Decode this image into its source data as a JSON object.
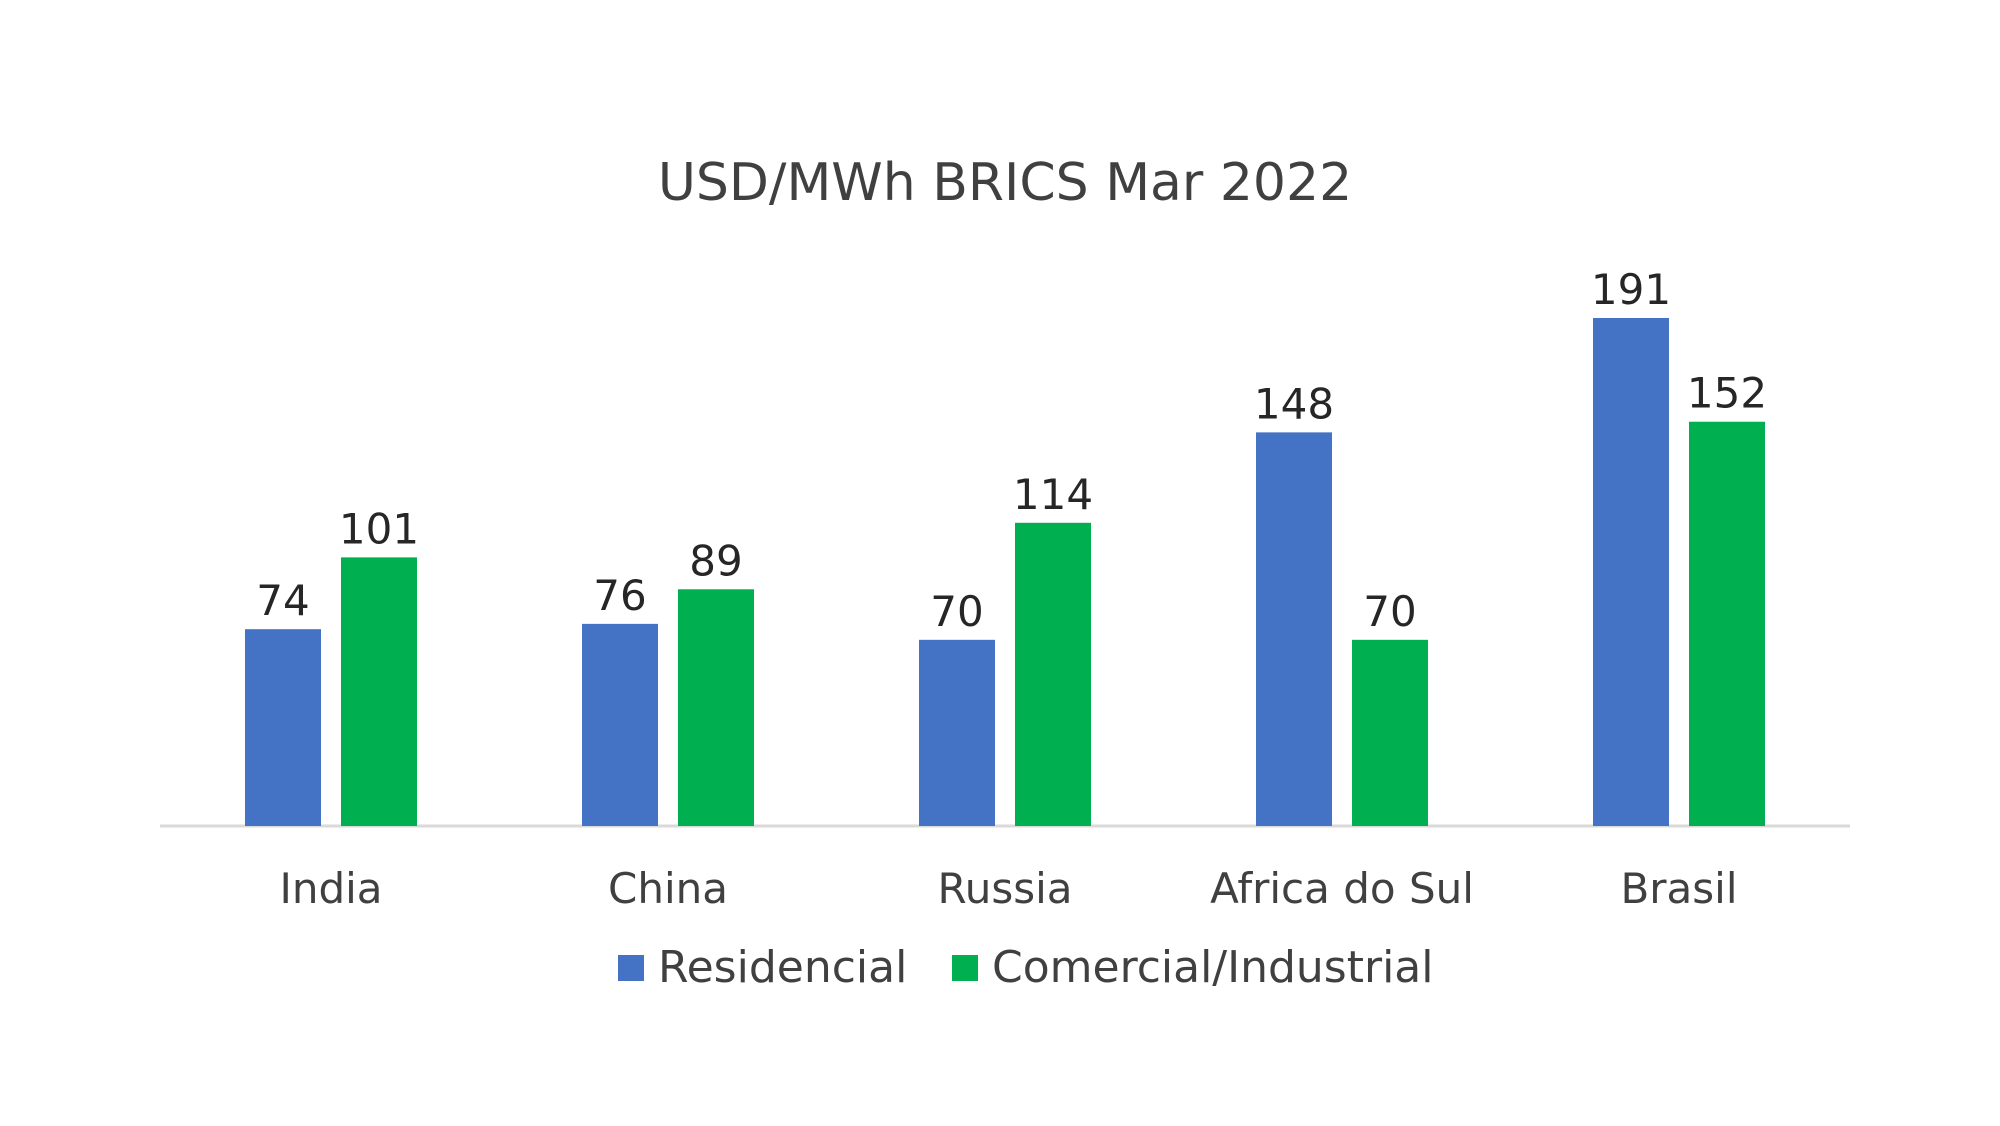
{
  "chart_data": {
    "type": "bar",
    "title": "USD/MWh  BRICS Mar 2022",
    "categories": [
      "India",
      "China",
      "Russia",
      "Africa do Sul",
      "Brasil"
    ],
    "series": [
      {
        "name": "Residencial",
        "color": "#4472C4",
        "values": [
          74,
          76,
          70,
          148,
          191
        ]
      },
      {
        "name": "Comercial/Industrial",
        "color": "#00B050",
        "values": [
          101,
          89,
          114,
          70,
          152
        ]
      }
    ],
    "ylim": [
      0,
      191
    ],
    "grid": false,
    "legend_position": "bottom",
    "data_labels": true
  }
}
